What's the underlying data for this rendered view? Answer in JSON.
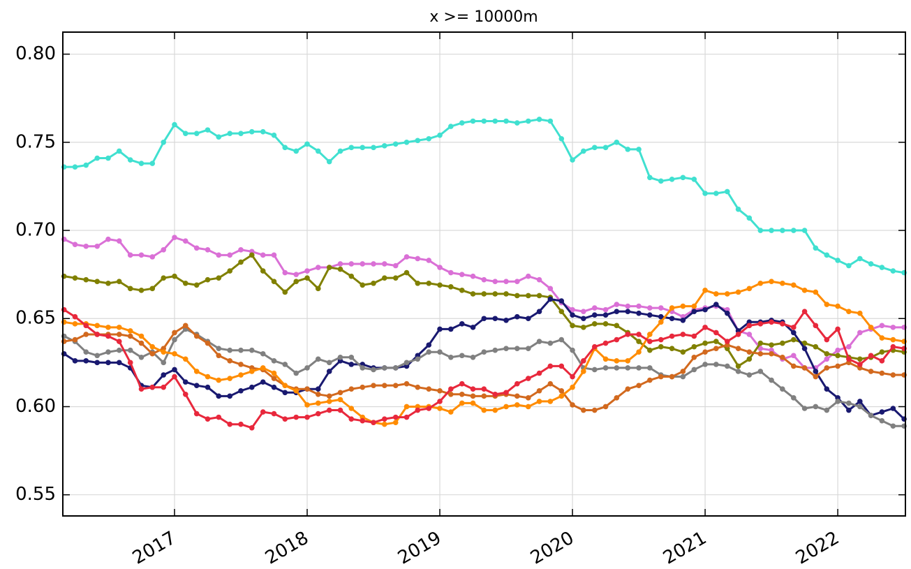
{
  "chart_data": {
    "type": "line",
    "title": "x >= 10000m",
    "x": [
      2016.167,
      2016.25,
      2016.333,
      2016.417,
      2016.5,
      2016.583,
      2016.667,
      2016.75,
      2016.833,
      2016.917,
      2017.0,
      2017.083,
      2017.167,
      2017.25,
      2017.333,
      2017.417,
      2017.5,
      2017.583,
      2017.667,
      2017.75,
      2017.833,
      2017.917,
      2018.0,
      2018.083,
      2018.167,
      2018.25,
      2018.333,
      2018.417,
      2018.5,
      2018.583,
      2018.667,
      2018.75,
      2018.833,
      2018.917,
      2019.0,
      2019.083,
      2019.167,
      2019.25,
      2019.333,
      2019.417,
      2019.5,
      2019.583,
      2019.667,
      2019.75,
      2019.833,
      2019.917,
      2020.0,
      2020.083,
      2020.167,
      2020.25,
      2020.333,
      2020.417,
      2020.5,
      2020.583,
      2020.667,
      2020.75,
      2020.833,
      2020.917,
      2021.0,
      2021.083,
      2021.167,
      2021.25,
      2021.333,
      2021.417,
      2021.5,
      2021.583,
      2021.667,
      2021.75,
      2021.833,
      2021.917,
      2022.0,
      2022.083,
      2022.167,
      2022.25,
      2022.333,
      2022.417,
      2022.5
    ],
    "series": [
      {
        "color": "#40e0d0",
        "values": [
          0.736,
          0.736,
          0.737,
          0.741,
          0.741,
          0.745,
          0.74,
          0.738,
          0.738,
          0.75,
          0.76,
          0.755,
          0.755,
          0.757,
          0.753,
          0.755,
          0.755,
          0.756,
          0.756,
          0.754,
          0.747,
          0.745,
          0.749,
          0.745,
          0.739,
          0.745,
          0.747,
          0.747,
          0.747,
          0.748,
          0.749,
          0.75,
          0.751,
          0.752,
          0.754,
          0.759,
          0.761,
          0.762,
          0.762,
          0.762,
          0.762,
          0.761,
          0.762,
          0.763,
          0.762,
          0.752,
          0.74,
          0.745,
          0.747,
          0.747,
          0.75,
          0.746,
          0.746,
          0.73,
          0.728,
          0.729,
          0.73,
          0.729,
          0.721,
          0.721,
          0.722,
          0.712,
          0.707,
          0.7,
          0.7,
          0.7,
          0.7,
          0.7,
          0.69,
          0.686,
          0.683,
          0.68,
          0.684,
          0.681,
          0.679,
          0.677,
          0.676
        ]
      },
      {
        "color": "#da70d6",
        "values": [
          0.695,
          0.692,
          0.691,
          0.691,
          0.695,
          0.694,
          0.686,
          0.686,
          0.685,
          0.689,
          0.696,
          0.694,
          0.69,
          0.689,
          0.686,
          0.686,
          0.689,
          0.688,
          0.686,
          0.686,
          0.676,
          0.675,
          0.677,
          0.679,
          0.679,
          0.681,
          0.681,
          0.681,
          0.681,
          0.681,
          0.68,
          0.685,
          0.684,
          0.683,
          0.679,
          0.676,
          0.675,
          0.674,
          0.672,
          0.671,
          0.671,
          0.671,
          0.674,
          0.672,
          0.667,
          0.659,
          0.655,
          0.654,
          0.656,
          0.655,
          0.658,
          0.657,
          0.657,
          0.656,
          0.656,
          0.654,
          0.651,
          0.655,
          0.656,
          0.657,
          0.655,
          0.643,
          0.641,
          0.633,
          0.632,
          0.627,
          0.629,
          0.622,
          0.622,
          0.627,
          0.632,
          0.634,
          0.642,
          0.644,
          0.646,
          0.645,
          0.645
        ]
      },
      {
        "color": "#808000",
        "values": [
          0.674,
          0.673,
          0.672,
          0.671,
          0.67,
          0.671,
          0.667,
          0.666,
          0.667,
          0.673,
          0.674,
          0.67,
          0.669,
          0.672,
          0.673,
          0.677,
          0.682,
          0.686,
          0.677,
          0.671,
          0.665,
          0.671,
          0.673,
          0.667,
          0.679,
          0.678,
          0.674,
          0.669,
          0.67,
          0.673,
          0.673,
          0.676,
          0.67,
          0.67,
          0.669,
          0.668,
          0.666,
          0.664,
          0.664,
          0.664,
          0.664,
          0.663,
          0.663,
          0.663,
          0.662,
          0.654,
          0.646,
          0.645,
          0.647,
          0.647,
          0.646,
          0.642,
          0.637,
          0.632,
          0.634,
          0.633,
          0.631,
          0.634,
          0.636,
          0.637,
          0.633,
          0.623,
          0.627,
          0.636,
          0.635,
          0.636,
          0.638,
          0.636,
          0.634,
          0.63,
          0.629,
          0.628,
          0.627,
          0.628,
          0.631,
          0.632,
          0.631
        ]
      },
      {
        "color": "#191970",
        "values": [
          0.63,
          0.626,
          0.626,
          0.625,
          0.625,
          0.625,
          0.622,
          0.612,
          0.611,
          0.618,
          0.621,
          0.614,
          0.612,
          0.611,
          0.606,
          0.606,
          0.609,
          0.611,
          0.614,
          0.611,
          0.608,
          0.608,
          0.61,
          0.61,
          0.62,
          0.626,
          0.624,
          0.624,
          0.622,
          0.622,
          0.622,
          0.623,
          0.629,
          0.635,
          0.644,
          0.644,
          0.647,
          0.645,
          0.65,
          0.65,
          0.649,
          0.651,
          0.65,
          0.654,
          0.661,
          0.66,
          0.652,
          0.65,
          0.652,
          0.652,
          0.654,
          0.654,
          0.653,
          0.652,
          0.651,
          0.65,
          0.649,
          0.654,
          0.655,
          0.658,
          0.653,
          0.643,
          0.648,
          0.648,
          0.649,
          0.648,
          0.642,
          0.633,
          0.62,
          0.61,
          0.605,
          0.598,
          0.603,
          0.595,
          0.597,
          0.599,
          0.593
        ]
      },
      {
        "color": "#808080",
        "values": [
          0.64,
          0.637,
          0.631,
          0.629,
          0.631,
          0.632,
          0.632,
          0.628,
          0.631,
          0.625,
          0.638,
          0.644,
          0.641,
          0.637,
          0.633,
          0.632,
          0.632,
          0.632,
          0.63,
          0.626,
          0.624,
          0.619,
          0.622,
          0.627,
          0.625,
          0.628,
          0.628,
          0.622,
          0.621,
          0.622,
          0.622,
          0.625,
          0.627,
          0.631,
          0.631,
          0.628,
          0.629,
          0.628,
          0.631,
          0.632,
          0.633,
          0.633,
          0.633,
          0.637,
          0.636,
          0.638,
          0.632,
          0.622,
          0.621,
          0.622,
          0.622,
          0.622,
          0.622,
          0.622,
          0.618,
          0.617,
          0.617,
          0.621,
          0.624,
          0.624,
          0.623,
          0.62,
          0.618,
          0.62,
          0.615,
          0.61,
          0.605,
          0.599,
          0.6,
          0.598,
          0.603,
          0.602,
          0.6,
          0.595,
          0.592,
          0.589,
          0.589
        ]
      },
      {
        "color": "#d2691e",
        "values": [
          0.637,
          0.638,
          0.641,
          0.641,
          0.641,
          0.641,
          0.64,
          0.636,
          0.63,
          0.633,
          0.642,
          0.646,
          0.64,
          0.636,
          0.629,
          0.626,
          0.624,
          0.622,
          0.621,
          0.616,
          0.612,
          0.61,
          0.61,
          0.607,
          0.606,
          0.608,
          0.61,
          0.611,
          0.612,
          0.612,
          0.612,
          0.613,
          0.611,
          0.61,
          0.609,
          0.607,
          0.607,
          0.606,
          0.606,
          0.606,
          0.607,
          0.606,
          0.605,
          0.609,
          0.613,
          0.609,
          0.601,
          0.598,
          0.598,
          0.6,
          0.605,
          0.61,
          0.612,
          0.615,
          0.617,
          0.617,
          0.62,
          0.628,
          0.631,
          0.633,
          0.635,
          0.633,
          0.631,
          0.63,
          0.63,
          0.628,
          0.623,
          0.622,
          0.617,
          0.622,
          0.623,
          0.625,
          0.622,
          0.62,
          0.619,
          0.618,
          0.618
        ]
      },
      {
        "color": "#ff8c00",
        "values": [
          0.648,
          0.647,
          0.647,
          0.646,
          0.645,
          0.645,
          0.643,
          0.64,
          0.634,
          0.631,
          0.63,
          0.627,
          0.62,
          0.617,
          0.615,
          0.616,
          0.618,
          0.62,
          0.622,
          0.619,
          0.612,
          0.609,
          0.601,
          0.602,
          0.603,
          0.604,
          0.599,
          0.594,
          0.591,
          0.59,
          0.591,
          0.6,
          0.6,
          0.6,
          0.599,
          0.597,
          0.602,
          0.602,
          0.598,
          0.598,
          0.6,
          0.601,
          0.6,
          0.603,
          0.603,
          0.606,
          0.611,
          0.62,
          0.633,
          0.627,
          0.626,
          0.626,
          0.631,
          0.641,
          0.648,
          0.656,
          0.657,
          0.657,
          0.666,
          0.664,
          0.664,
          0.665,
          0.667,
          0.67,
          0.671,
          0.67,
          0.669,
          0.666,
          0.665,
          0.658,
          0.657,
          0.654,
          0.653,
          0.645,
          0.639,
          0.638,
          0.637
        ]
      },
      {
        "color": "#e8283c",
        "values": [
          0.655,
          0.651,
          0.646,
          0.641,
          0.64,
          0.637,
          0.625,
          0.61,
          0.611,
          0.611,
          0.617,
          0.607,
          0.596,
          0.593,
          0.594,
          0.59,
          0.59,
          0.588,
          0.597,
          0.596,
          0.593,
          0.594,
          0.594,
          0.596,
          0.598,
          0.598,
          0.593,
          0.592,
          0.591,
          0.593,
          0.594,
          0.594,
          0.598,
          0.599,
          0.603,
          0.61,
          0.613,
          0.61,
          0.61,
          0.607,
          0.608,
          0.613,
          0.616,
          0.619,
          0.623,
          0.623,
          0.617,
          0.626,
          0.634,
          0.636,
          0.638,
          0.641,
          0.641,
          0.637,
          0.638,
          0.64,
          0.641,
          0.64,
          0.645,
          0.642,
          0.637,
          0.641,
          0.646,
          0.647,
          0.648,
          0.647,
          0.645,
          0.654,
          0.646,
          0.638,
          0.644,
          0.627,
          0.624,
          0.629,
          0.626,
          0.634,
          0.633
        ]
      }
    ],
    "xlim": [
      2016.158,
      2022.51
    ],
    "xticks": [
      2017,
      2018,
      2019,
      2020,
      2021,
      2022
    ],
    "ylim": [
      0.538,
      0.8125
    ],
    "yticks": [
      0.55,
      {
        "value": 0.6,
        "label": "0.60"
      },
      0.65,
      {
        "value": 0.7,
        "label": "0.70"
      },
      0.75,
      {
        "value": 0.8,
        "label": "0.80"
      }
    ],
    "grid": true
  }
}
